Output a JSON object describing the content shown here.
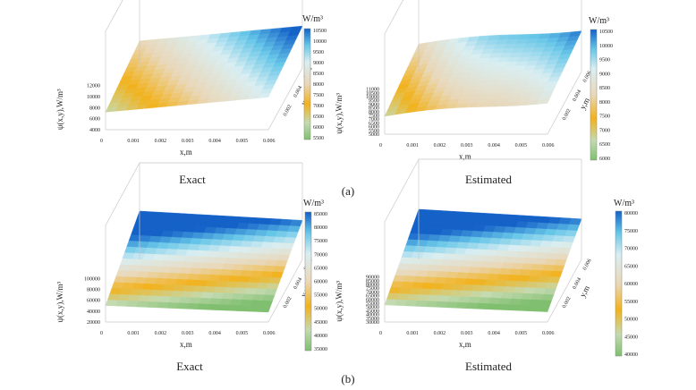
{
  "colors": {
    "green": "#6fb36b",
    "lightgreen": "#c9dcae",
    "orange": "#f0b020",
    "beige": "#e8d8bd",
    "cyan": "#7fd0e8",
    "blue": "#1d6fd0",
    "grid": "#c8c8c8"
  },
  "chart_data": [
    {
      "type": "heatmap",
      "id": "a-exact",
      "panel_label": "(a)",
      "title": "Exact",
      "xlabel": "x,m",
      "ylabel": "y,m",
      "zlabel": "ψ(x,y),W/m³",
      "colorbar_unit": "W/m³",
      "xticks": [
        "0",
        "0.001",
        "0.002",
        "0.003",
        "0.004",
        "0.005",
        "0.006"
      ],
      "yticks": [
        "0.002",
        "0.004",
        "0.006"
      ],
      "zticks": [
        "4000",
        "6000",
        "8000",
        "10000",
        "12000"
      ],
      "cbar_ticks": [
        "5500",
        "6000",
        "6500",
        "7000",
        "7500",
        "8000",
        "8500",
        "9000",
        "9500",
        "10000",
        "10500"
      ],
      "xlim": [
        0,
        0.006
      ],
      "ylim": [
        0,
        0.006
      ],
      "zlim": [
        4000,
        12000
      ],
      "value_range": [
        5500,
        10500
      ]
    },
    {
      "type": "heatmap",
      "id": "a-estimated",
      "panel_label": "(a)",
      "title": "Estimated",
      "xlabel": "x,m",
      "ylabel": "y,m",
      "zlabel": "ψ(x,y),W/m³",
      "colorbar_unit": "W/m³",
      "xticks": [
        "0",
        "0.001",
        "0.002",
        "0.003",
        "0.004",
        "0.005",
        "0.006"
      ],
      "yticks": [
        "0.002",
        "0.004",
        "0.006"
      ],
      "zticks": [
        "5000",
        "5500",
        "6000",
        "6500",
        "7000",
        "7500",
        "8000",
        "8500",
        "9000",
        "9500",
        "10000",
        "10500",
        "11000"
      ],
      "cbar_ticks": [
        "6000",
        "6500",
        "7000",
        "7500",
        "8000",
        "8500",
        "9000",
        "9500",
        "10000",
        "10500"
      ],
      "xlim": [
        0,
        0.006
      ],
      "ylim": [
        0,
        0.006
      ],
      "zlim": [
        5000,
        11000
      ],
      "value_range": [
        6000,
        10500
      ]
    },
    {
      "type": "heatmap",
      "id": "b-exact",
      "panel_label": "(b)",
      "title": "Exact",
      "xlabel": "x,m",
      "ylabel": "y,m",
      "zlabel": "ψ(x,y),W/m³",
      "colorbar_unit": "W/m³",
      "xticks": [
        "0",
        "0.001",
        "0.002",
        "0.003",
        "0.004",
        "0.005",
        "0.006"
      ],
      "yticks": [
        "0.002",
        "0.004",
        "0.006"
      ],
      "zticks": [
        "20000",
        "40000",
        "60000",
        "80000",
        "100000"
      ],
      "cbar_ticks": [
        "35000",
        "40000",
        "45000",
        "50000",
        "55000",
        "60000",
        "65000",
        "70000",
        "75000",
        "80000",
        "85000"
      ],
      "xlim": [
        0,
        0.006
      ],
      "ylim": [
        0,
        0.006
      ],
      "zlim": [
        20000,
        100000
      ],
      "value_range": [
        35000,
        85000
      ]
    },
    {
      "type": "heatmap",
      "id": "b-estimated",
      "panel_label": "(b)",
      "title": "Estimated",
      "xlabel": "x,m",
      "ylabel": "y,m",
      "zlabel": "ψ(x,y),W/m³",
      "colorbar_unit": "W/m³",
      "xticks": [
        "0",
        "0.001",
        "0.002",
        "0.003",
        "0.004",
        "0.005",
        "0.006"
      ],
      "yticks": [
        "0.002",
        "0.004",
        "0.006"
      ],
      "zticks": [
        "30000",
        "35000",
        "40000",
        "45000",
        "50000",
        "55000",
        "60000",
        "65000",
        "70000",
        "75000",
        "80000",
        "85000",
        "90000"
      ],
      "cbar_ticks": [
        "40000",
        "45000",
        "50000",
        "55000",
        "60000",
        "65000",
        "70000",
        "75000",
        "80000"
      ],
      "xlim": [
        0,
        0.006
      ],
      "ylim": [
        0,
        0.006
      ],
      "zlim": [
        30000,
        90000
      ],
      "value_range": [
        40000,
        80000
      ]
    }
  ],
  "figure_labels": {
    "a": "(a)",
    "b": "(b)"
  }
}
